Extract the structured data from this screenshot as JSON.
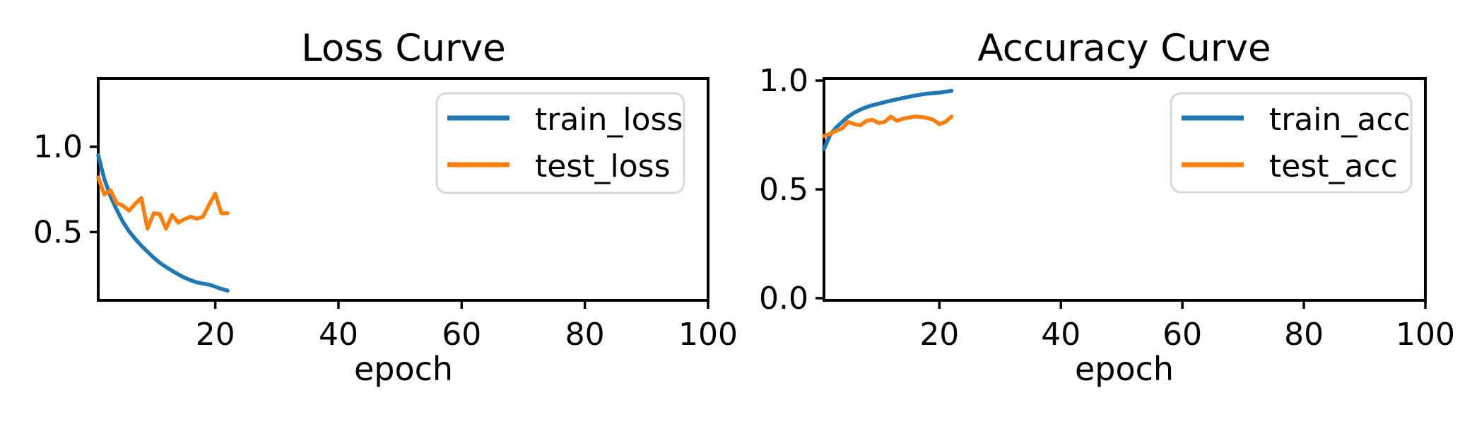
{
  "figure": {
    "background": "#ffffff",
    "colors": {
      "text": "#000000",
      "axes": "#000000",
      "legend_border": "#d9d9d9",
      "train": "#1f77b4",
      "test": "#ff7f0e"
    }
  },
  "chart_data": [
    {
      "type": "line",
      "title": "Loss Curve",
      "xlabel": "epoch",
      "ylabel": "",
      "grid": false,
      "legend_position": "upper right",
      "xlim": [
        1,
        100
      ],
      "ylim": [
        0.1,
        1.4
      ],
      "xticks": [
        20,
        40,
        60,
        80,
        100
      ],
      "xtick_labels": [
        "20",
        "40",
        "60",
        "80",
        "100"
      ],
      "yticks": [
        1.0,
        0.5
      ],
      "ytick_labels": [
        "1.0",
        "0.5"
      ],
      "x": [
        1,
        2,
        3,
        4,
        5,
        6,
        7,
        8,
        9,
        10,
        11,
        12,
        13,
        14,
        15,
        16,
        17,
        18,
        19,
        20,
        21,
        22
      ],
      "series": [
        {
          "name": "train_loss",
          "color": "#1f77b4",
          "values": [
            0.95,
            0.81,
            0.71,
            0.63,
            0.56,
            0.505,
            0.46,
            0.42,
            0.385,
            0.35,
            0.32,
            0.295,
            0.273,
            0.252,
            0.233,
            0.218,
            0.205,
            0.198,
            0.192,
            0.18,
            0.167,
            0.157
          ]
        },
        {
          "name": "test_loss",
          "color": "#ff7f0e",
          "values": [
            0.82,
            0.72,
            0.745,
            0.67,
            0.655,
            0.625,
            0.665,
            0.7,
            0.52,
            0.61,
            0.605,
            0.52,
            0.6,
            0.555,
            0.575,
            0.59,
            0.578,
            0.59,
            0.66,
            0.725,
            0.61,
            0.61
          ]
        }
      ]
    },
    {
      "type": "line",
      "title": "Accuracy Curve",
      "xlabel": "epoch",
      "ylabel": "",
      "grid": false,
      "legend_position": "upper right",
      "xlim": [
        1,
        100
      ],
      "ylim": [
        -0.01,
        1.01
      ],
      "xticks": [
        20,
        40,
        60,
        80,
        100
      ],
      "xtick_labels": [
        "20",
        "40",
        "60",
        "80",
        "100"
      ],
      "yticks": [
        1.0,
        0.5,
        0.0
      ],
      "ytick_labels": [
        "1.0",
        "0.5",
        "0.0"
      ],
      "x": [
        1,
        2,
        3,
        4,
        5,
        6,
        7,
        8,
        9,
        10,
        11,
        12,
        13,
        14,
        15,
        16,
        17,
        18,
        19,
        20,
        21,
        22
      ],
      "series": [
        {
          "name": "train_acc",
          "color": "#1f77b4",
          "values": [
            0.685,
            0.75,
            0.785,
            0.81,
            0.835,
            0.853,
            0.867,
            0.878,
            0.887,
            0.894,
            0.901,
            0.908,
            0.914,
            0.92,
            0.926,
            0.931,
            0.936,
            0.94,
            0.942,
            0.945,
            0.949,
            0.953
          ]
        },
        {
          "name": "test_acc",
          "color": "#ff7f0e",
          "values": [
            0.745,
            0.755,
            0.77,
            0.78,
            0.81,
            0.8,
            0.795,
            0.815,
            0.82,
            0.805,
            0.81,
            0.835,
            0.815,
            0.825,
            0.83,
            0.835,
            0.833,
            0.828,
            0.82,
            0.8,
            0.81,
            0.835
          ]
        }
      ]
    }
  ]
}
